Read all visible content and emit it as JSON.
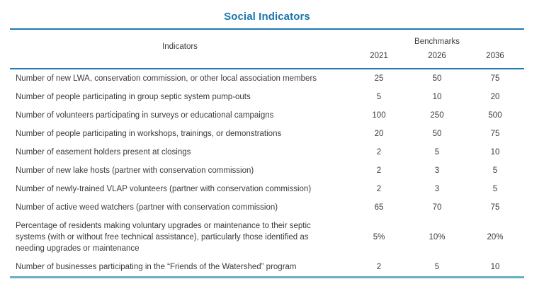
{
  "title": "Social Indicators",
  "table": {
    "header": {
      "indicators_label": "Indicators",
      "benchmarks_label": "Benchmarks",
      "years": [
        "2021",
        "2026",
        "2036"
      ]
    },
    "rows": [
      {
        "indicator": "Number of new LWA, conservation commission, or other local association members",
        "y2021": "25",
        "y2026": "50",
        "y2036": "75"
      },
      {
        "indicator": "Number of people participating in group septic system pump-outs",
        "y2021": "5",
        "y2026": "10",
        "y2036": "20"
      },
      {
        "indicator": "Number of volunteers participating in surveys or educational campaigns",
        "y2021": "100",
        "y2026": "250",
        "y2036": "500"
      },
      {
        "indicator": "Number of people participating in workshops, trainings, or demonstrations",
        "y2021": "20",
        "y2026": "50",
        "y2036": "75"
      },
      {
        "indicator": "Number of easement holders present at closings",
        "y2021": "2",
        "y2026": "5",
        "y2036": "10"
      },
      {
        "indicator": "Number of new lake hosts (partner with conservation commission)",
        "y2021": "2",
        "y2026": "3",
        "y2036": "5"
      },
      {
        "indicator": "Number of newly-trained VLAP volunteers (partner with conservation commission)",
        "y2021": "2",
        "y2026": "3",
        "y2036": "5"
      },
      {
        "indicator": "Number of active weed watchers (partner with conservation commission)",
        "y2021": "65",
        "y2026": "70",
        "y2036": "75"
      },
      {
        "indicator": "Percentage of residents making voluntary upgrades or maintenance to their septic systems (with or without free technical assistance), particularly those identified as needing upgrades or maintenance",
        "y2021": "5%",
        "y2026": "10%",
        "y2036": "20%"
      },
      {
        "indicator": "Number of businesses participating in the “Friends of the Watershed” program",
        "y2021": "2",
        "y2026": "5",
        "y2036": "10"
      }
    ]
  },
  "colors": {
    "title": "#1b76ae",
    "top_rule": "#1d7ab3",
    "header_rule": "#1d7ab3",
    "bottom_rule": "#69afc5",
    "text": "#3b3b3b"
  }
}
